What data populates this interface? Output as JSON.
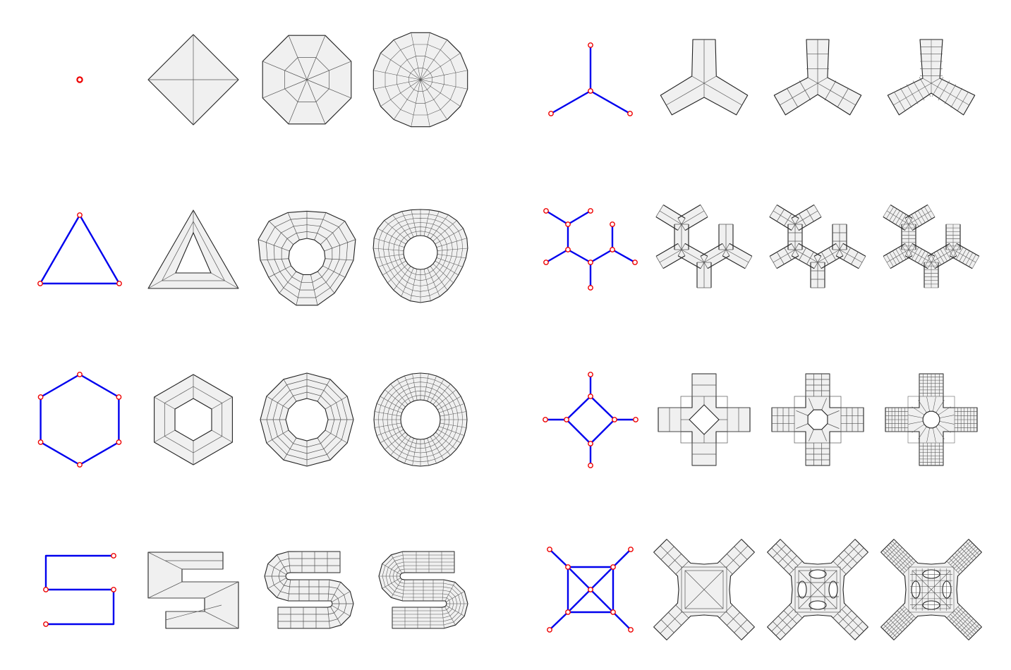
{
  "colors": {
    "edge": "#0000ee",
    "node": "#ee0000",
    "fill": "#f0f0f0",
    "outline": "#222222",
    "mesh": "#555555"
  },
  "rows": [
    {
      "left": "point",
      "right": "tri-star"
    },
    {
      "left": "triangle",
      "right": "branching"
    },
    {
      "left": "hexagon",
      "right": "cross-loop"
    },
    {
      "left": "s-curve",
      "right": "square-x"
    }
  ],
  "stages": [
    "skeleton",
    "coarse",
    "medium",
    "fine"
  ]
}
